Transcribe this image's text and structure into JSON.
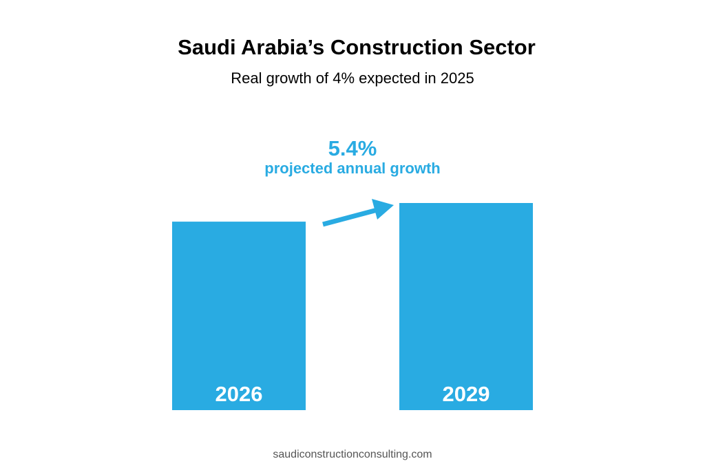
{
  "chart_data": {
    "type": "bar",
    "title": "Saudi Arabia’s Construction Sector",
    "subtitle": "Real growth of 4% expected in 2025",
    "annotation": "5.4%",
    "annotation_text": "projected annual growth",
    "categories": [
      "2026",
      "2029"
    ],
    "values": [
      91,
      100
    ],
    "color": "#29abe2",
    "source": "saudiconstructionconsulting.com"
  }
}
